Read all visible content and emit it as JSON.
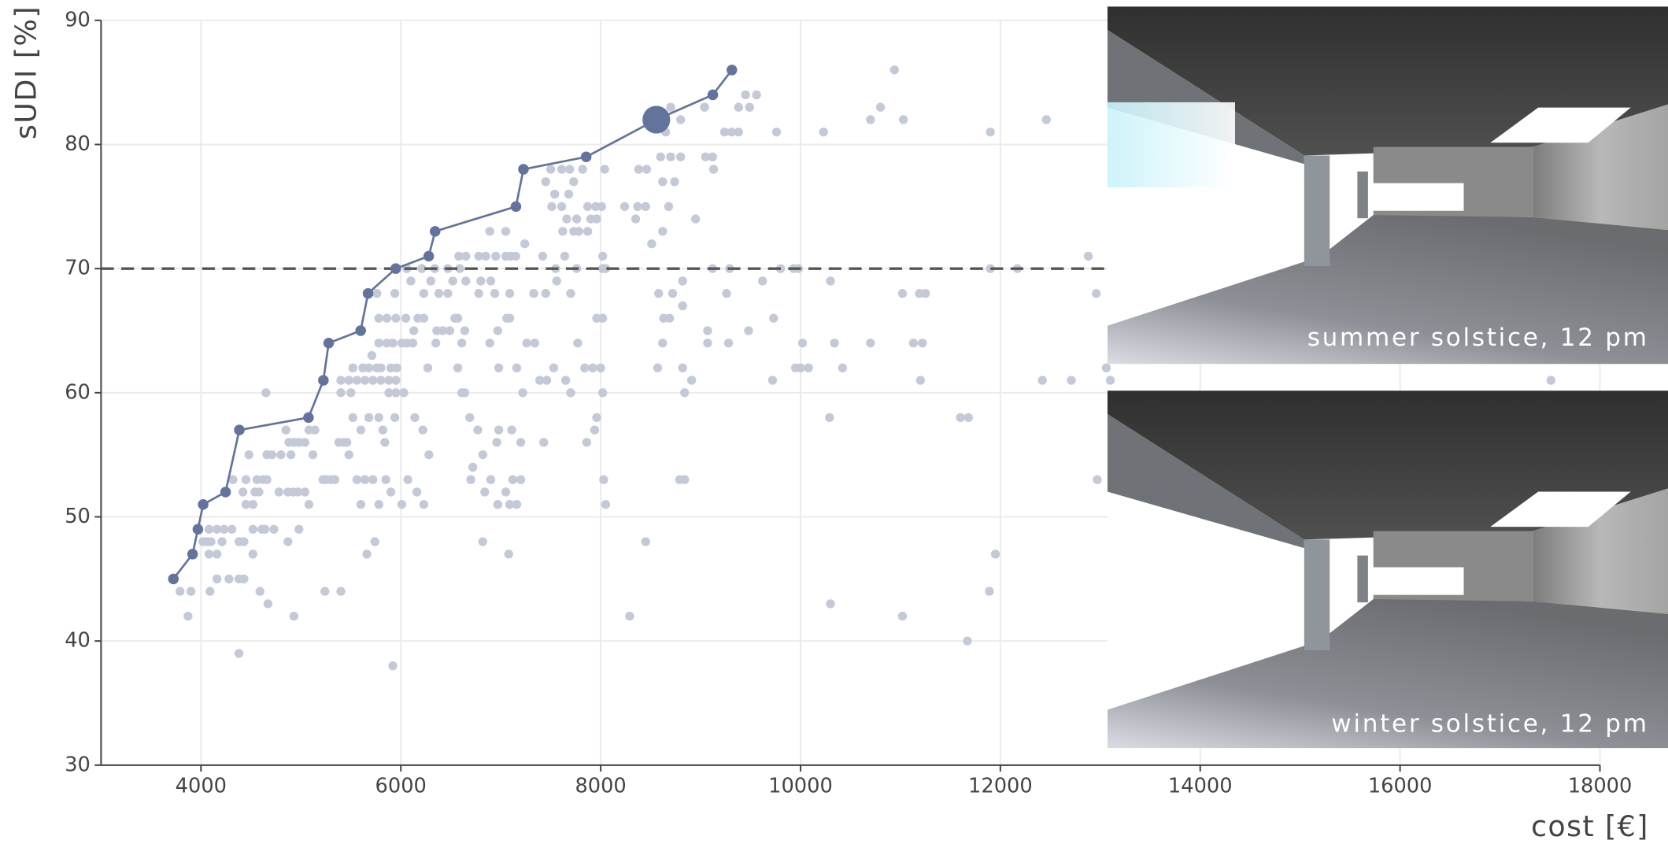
{
  "chart_data": {
    "type": "scatter",
    "xlabel": "cost [€]",
    "ylabel": "sUDI [%]",
    "xlim": [
      3000,
      18000
    ],
    "ylim": [
      30,
      90
    ],
    "xticks": [
      4000,
      6000,
      8000,
      10000,
      12000,
      14000,
      16000,
      18000
    ],
    "yticks": [
      30,
      40,
      50,
      60,
      70,
      80,
      90
    ],
    "grid": true,
    "threshold": 70,
    "points": {
      "color": "#c3c9d6",
      "x": [
        10940,
        10800,
        10700,
        11030,
        12460,
        11900,
        10230,
        9760,
        12880,
        12960,
        11020,
        11250,
        11190,
        12170,
        11900,
        10700,
        11130,
        11220,
        11200,
        12420,
        12710,
        13060,
        13100,
        17510,
        11600,
        11680,
        10290,
        12970,
        11950,
        11890,
        10300,
        11020,
        11670,
        8290,
        8450,
        9720,
        10000,
        9950,
        10080,
        10420,
        10340,
        10020,
        9730,
        10300,
        9980,
        9930,
        9620,
        9800,
        9490,
        9560,
        9450,
        9380,
        9240,
        9310,
        9380,
        9040,
        8950,
        9050,
        9130,
        9120,
        8800,
        8700,
        8650,
        8600,
        8700,
        8800,
        8740,
        8620,
        8680,
        8620,
        8450,
        8370,
        8460,
        8380,
        8350,
        8510,
        8240,
        8580,
        8720,
        8620,
        8630,
        8690,
        8820,
        8820,
        8570,
        8820,
        8910,
        8840,
        8790,
        8840,
        9070,
        9070,
        9280,
        9260,
        9480,
        9290,
        9120,
        7050,
        7100,
        7150,
        6950,
        6850,
        6780,
        6650,
        6580,
        6890,
        7050,
        7240,
        7420,
        7550,
        7640,
        7760,
        7700,
        7560,
        7450,
        7330,
        7090,
        6940,
        6780,
        6900,
        6800,
        6650,
        6520,
        6470,
        6380,
        6230,
        6100,
        5940,
        5760,
        6590,
        6470,
        6340,
        6210,
        6060,
        7900,
        7960,
        7870,
        7950,
        8010,
        7760,
        7660,
        7620,
        7730,
        7780,
        7870,
        7610,
        7680,
        7510,
        7450,
        7730,
        7820,
        7690,
        7610,
        7500,
        7540,
        8040,
        8020,
        8050,
        8020,
        7960,
        8020,
        7920,
        8000,
        7940,
        7960,
        8020,
        7840,
        8030,
        8050,
        7860,
        7700,
        7650,
        7770,
        7530,
        7460,
        7390,
        7430,
        7340,
        7260,
        7220,
        7160,
        7200,
        7160,
        7090,
        7120,
        7200,
        7110,
        7090,
        7060,
        6970,
        6890,
        6980,
        6980,
        6960,
        6900,
        6970,
        7050,
        7080,
        6820,
        6820,
        6720,
        6700,
        6840,
        6770,
        6690,
        6640,
        6610,
        6570,
        6640,
        6570,
        6490,
        6420,
        6360,
        6350,
        6270,
        6230,
        6170,
        6130,
        6010,
        5920,
        5860,
        5780,
        6060,
        6120,
        6050,
        5950,
        5860,
        5780,
        5710,
        5620,
        5680,
        5760,
        5800,
        5900,
        5960,
        5950,
        5880,
        5800,
        5720,
        5640,
        5560,
        5520,
        5480,
        5400,
        5400,
        5500,
        5520,
        5600,
        5680,
        5780,
        5820,
        5880,
        5950,
        6030,
        6140,
        6220,
        6280,
        6160,
        6230,
        6070,
        6010,
        5900,
        5850,
        5780,
        5720,
        5640,
        5600,
        5560,
        5480,
        5430,
        5460,
        5380,
        5340,
        5250,
        5220,
        5300,
        5120,
        5140,
        5080,
        5040,
        4980,
        4930,
        4880,
        4850,
        4900,
        4800,
        4710,
        4660,
        4620,
        4560,
        4540,
        4450,
        4420,
        4450,
        4520,
        4580,
        4660,
        4780,
        4870,
        4920,
        4970,
        5040,
        5080,
        4640,
        4730,
        4610,
        4520,
        4430,
        4380,
        4310,
        4230,
        4160,
        4100,
        4080,
        4160,
        4080,
        4060,
        4020,
        4210,
        4160,
        4280,
        4380,
        4430,
        4420,
        4520,
        4590,
        4670,
        4870,
        4980,
        4930,
        4380,
        3790,
        3900,
        3870,
        4090,
        5240,
        5400,
        5660,
        5740,
        5920,
        4240,
        4320,
        4480,
        4650,
        5840,
        5940,
        6300,
        6540,
        6610
      ],
      "y": [
        86,
        83,
        82,
        82,
        82,
        81,
        81,
        81,
        71,
        68,
        68,
        68,
        68,
        70,
        70,
        64,
        64,
        64,
        61,
        61,
        61,
        62,
        61,
        61,
        58,
        58,
        58,
        53,
        47,
        44,
        43,
        42,
        40,
        42,
        48,
        61,
        62,
        62,
        62,
        62,
        64,
        64,
        66,
        69,
        70,
        70,
        69,
        70,
        83,
        84,
        84,
        83,
        81,
        81,
        81,
        83,
        74,
        79,
        78,
        79,
        82,
        83,
        81,
        79,
        79,
        79,
        77,
        77,
        75,
        73,
        75,
        75,
        78,
        78,
        74,
        72,
        75,
        68,
        68,
        64,
        66,
        66,
        67,
        69,
        62,
        62,
        61,
        60,
        53,
        53,
        65,
        64,
        64,
        68,
        65,
        70,
        70,
        71,
        71,
        71,
        71,
        71,
        71,
        71,
        71,
        73,
        73,
        72,
        71,
        70,
        71,
        70,
        68,
        69,
        68,
        68,
        68,
        68,
        68,
        69,
        69,
        69,
        69,
        68,
        68,
        68,
        69,
        68,
        68,
        70,
        70,
        70,
        70,
        70,
        74,
        74,
        75,
        75,
        75,
        74,
        74,
        73,
        73,
        73,
        73,
        75,
        76,
        75,
        77,
        77,
        78,
        78,
        78,
        78,
        76,
        78,
        70,
        70,
        71,
        66,
        66,
        62,
        62,
        57,
        58,
        60,
        62,
        53,
        51,
        56,
        60,
        61,
        64,
        62,
        61,
        61,
        56,
        64,
        64,
        60,
        62,
        53,
        51,
        51,
        53,
        56,
        57,
        66,
        66,
        65,
        64,
        62,
        57,
        56,
        53,
        51,
        52,
        47,
        48,
        55,
        54,
        53,
        52,
        57,
        58,
        60,
        60,
        62,
        65,
        66,
        65,
        65,
        65,
        64,
        62,
        66,
        66,
        65,
        64,
        64,
        64,
        64,
        64,
        64,
        66,
        66,
        66,
        66,
        63,
        62,
        62,
        62,
        62,
        62,
        62,
        61,
        61,
        61,
        61,
        61,
        61,
        62,
        61,
        61,
        60,
        60,
        58,
        57,
        58,
        58,
        57,
        60,
        60,
        60,
        58,
        57,
        55,
        52,
        51,
        53,
        51,
        52,
        53,
        51,
        53,
        53,
        51,
        53,
        55,
        56,
        56,
        56,
        53,
        53,
        53,
        53,
        55,
        57,
        57,
        56,
        56,
        56,
        56,
        57,
        55,
        55,
        55,
        55,
        53,
        53,
        52,
        53,
        52,
        51,
        51,
        52,
        53,
        52,
        52,
        52,
        52,
        52,
        51,
        49,
        49,
        49,
        49,
        48,
        48,
        49,
        49,
        49,
        48,
        49,
        47,
        47,
        48,
        48,
        48,
        45,
        45,
        45,
        45,
        48,
        47,
        44,
        43,
        48,
        49,
        42,
        39,
        44,
        44,
        42,
        44,
        44,
        44,
        47,
        48,
        38,
        52,
        53,
        55,
        60,
        56,
        58,
        69,
        66,
        64
      ]
    },
    "pareto": {
      "color": "#63749c",
      "x": [
        3724,
        3916,
        3969,
        4022,
        4246,
        4384,
        5076,
        5225,
        5278,
        5598,
        5672,
        5949,
        6279,
        6343,
        7152,
        7227,
        7855,
        8557,
        9122,
        9313
      ],
      "y": [
        45,
        47,
        49,
        51,
        52,
        57,
        58,
        61,
        64,
        65,
        68,
        70,
        71,
        73,
        75,
        78,
        79,
        82,
        84,
        86
      ]
    },
    "highlight": {
      "x": 8557,
      "y": 82,
      "color": "#63749c"
    }
  },
  "images": [
    {
      "caption": "summer solstice, 12 pm"
    },
    {
      "caption": "winter solstice, 12 pm"
    }
  ]
}
